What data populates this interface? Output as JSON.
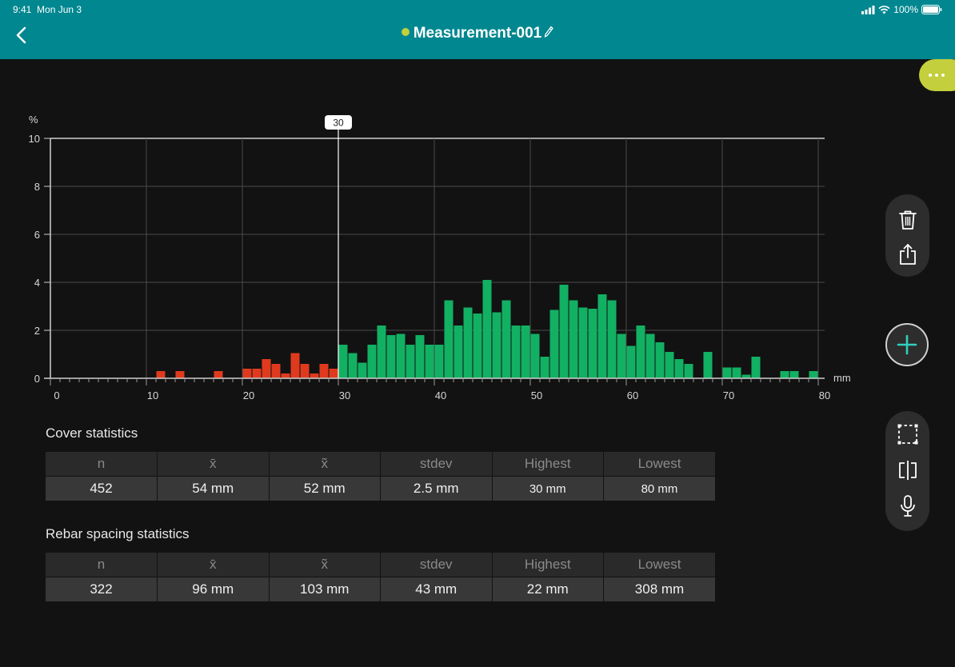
{
  "status_bar": {
    "time": "9:41",
    "date": "Mon Jun 3",
    "battery": "100%"
  },
  "header": {
    "title": "Measurement-001",
    "status_color": "#c3cf3c",
    "background": "#008790"
  },
  "colors": {
    "accent": "#c3cf3c",
    "below_threshold": "#e03a1e",
    "above_threshold": "#12b063",
    "add_ring": "#d0d0d0",
    "add_plus": "#2fcfbf"
  },
  "icons": {
    "back": "chevron-left-icon",
    "edit": "pencil-icon",
    "more": "ellipsis-icon",
    "delete": "trash-icon",
    "share": "share-icon",
    "add": "plus-icon",
    "select": "selection-box-icon",
    "split": "split-view-icon",
    "mic": "microphone-icon"
  },
  "chart_data": {
    "type": "bar",
    "ylabel": "%",
    "xlabel": "mm",
    "xlim": [
      0,
      80
    ],
    "ylim": [
      0,
      10
    ],
    "x_ticks": [
      0,
      10,
      20,
      30,
      40,
      50,
      60,
      70,
      80
    ],
    "y_ticks": [
      0,
      2,
      4,
      6,
      8,
      10
    ],
    "grid": true,
    "threshold": 30,
    "threshold_label": "30",
    "bin_width": 1,
    "bins": [
      {
        "x": 11,
        "y": 0.3
      },
      {
        "x": 13,
        "y": 0.3
      },
      {
        "x": 17,
        "y": 0.3
      },
      {
        "x": 20,
        "y": 0.4
      },
      {
        "x": 21,
        "y": 0.4
      },
      {
        "x": 22,
        "y": 0.8
      },
      {
        "x": 23,
        "y": 0.6
      },
      {
        "x": 24,
        "y": 0.2
      },
      {
        "x": 25,
        "y": 1.05
      },
      {
        "x": 26,
        "y": 0.6
      },
      {
        "x": 27,
        "y": 0.2
      },
      {
        "x": 28,
        "y": 0.6
      },
      {
        "x": 29,
        "y": 0.4
      },
      {
        "x": 30,
        "y": 1.4
      },
      {
        "x": 31,
        "y": 1.05
      },
      {
        "x": 32,
        "y": 0.65
      },
      {
        "x": 33,
        "y": 1.4
      },
      {
        "x": 34,
        "y": 2.2
      },
      {
        "x": 35,
        "y": 1.8
      },
      {
        "x": 36,
        "y": 1.85
      },
      {
        "x": 37,
        "y": 1.4
      },
      {
        "x": 38,
        "y": 1.8
      },
      {
        "x": 39,
        "y": 1.4
      },
      {
        "x": 40,
        "y": 1.4
      },
      {
        "x": 41,
        "y": 3.25
      },
      {
        "x": 42,
        "y": 2.2
      },
      {
        "x": 43,
        "y": 2.95
      },
      {
        "x": 44,
        "y": 2.7
      },
      {
        "x": 45,
        "y": 4.1
      },
      {
        "x": 46,
        "y": 2.75
      },
      {
        "x": 47,
        "y": 3.25
      },
      {
        "x": 48,
        "y": 2.2
      },
      {
        "x": 49,
        "y": 2.2
      },
      {
        "x": 50,
        "y": 1.85
      },
      {
        "x": 51,
        "y": 0.9
      },
      {
        "x": 52,
        "y": 2.85
      },
      {
        "x": 53,
        "y": 3.9
      },
      {
        "x": 54,
        "y": 3.25
      },
      {
        "x": 55,
        "y": 2.95
      },
      {
        "x": 56,
        "y": 2.9
      },
      {
        "x": 57,
        "y": 3.5
      },
      {
        "x": 58,
        "y": 3.25
      },
      {
        "x": 59,
        "y": 1.85
      },
      {
        "x": 60,
        "y": 1.35
      },
      {
        "x": 61,
        "y": 2.2
      },
      {
        "x": 62,
        "y": 1.85
      },
      {
        "x": 63,
        "y": 1.5
      },
      {
        "x": 64,
        "y": 1.1
      },
      {
        "x": 65,
        "y": 0.8
      },
      {
        "x": 66,
        "y": 0.6
      },
      {
        "x": 68,
        "y": 1.1
      },
      {
        "x": 70,
        "y": 0.45
      },
      {
        "x": 71,
        "y": 0.45
      },
      {
        "x": 72,
        "y": 0.15
      },
      {
        "x": 73,
        "y": 0.9
      },
      {
        "x": 76,
        "y": 0.3
      },
      {
        "x": 77,
        "y": 0.3
      },
      {
        "x": 79,
        "y": 0.3
      }
    ]
  },
  "cover_stats": {
    "title": "Cover statistics",
    "headers": [
      "n",
      "x̄",
      "x̃",
      "stdev",
      "Highest",
      "Lowest"
    ],
    "values": [
      "452",
      "54 mm",
      "52 mm",
      "2.5 mm",
      "30 mm",
      "80 mm"
    ]
  },
  "spacing_stats": {
    "title": "Rebar spacing statistics",
    "headers": [
      "n",
      "x̄",
      "x̃",
      "stdev",
      "Highest",
      "Lowest"
    ],
    "values": [
      "322",
      "96 mm",
      "103 mm",
      "43 mm",
      "22 mm",
      "308 mm"
    ]
  }
}
